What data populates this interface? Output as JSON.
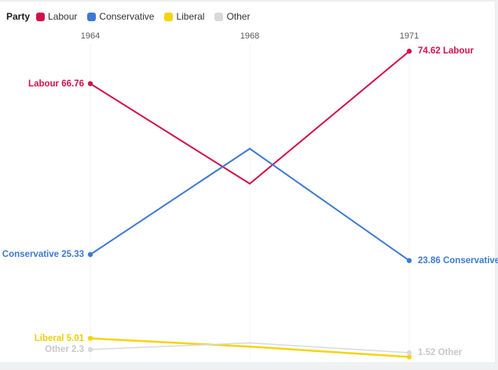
{
  "legend": {
    "title": "Party",
    "items": [
      {
        "label": "Labour",
        "color": "#d0114a"
      },
      {
        "label": "Conservative",
        "color": "#3e79d2"
      },
      {
        "label": "Liberal",
        "color": "#f5d40e"
      },
      {
        "label": "Other",
        "color": "#d9d9d9"
      }
    ]
  },
  "axis": {
    "years": [
      "1964",
      "1968",
      "1971"
    ]
  },
  "chart_data": {
    "type": "line",
    "title": "",
    "xlabel": "",
    "ylabel": "",
    "x": [
      1964,
      1968,
      1971
    ],
    "ylim": [
      0,
      80
    ],
    "y_axis_visible": false,
    "grid": "vertical-only",
    "legend_position": "top-left",
    "series": [
      {
        "name": "Labour",
        "color": "#d0114a",
        "label_color": "#d0114a",
        "values": [
          66.76,
          42.5,
          74.62
        ],
        "start_label": "Labour 66.76",
        "end_label": "74.62 Labour"
      },
      {
        "name": "Conservative",
        "color": "#3e79d2",
        "label_color": "#3e79d2",
        "values": [
          25.33,
          51,
          23.86
        ],
        "start_label": "Conservative 25.33",
        "end_label": "23.86 Conservative"
      },
      {
        "name": "Liberal",
        "color": "#f5d40e",
        "label_color": "#edcf05",
        "values": [
          5.01,
          3.0,
          0.5
        ],
        "start_label": "Liberal 5.01",
        "end_label": ""
      },
      {
        "name": "Other",
        "color": "#d9d9d9",
        "label_color": "#c8c8c8",
        "values": [
          2.3,
          3.9,
          1.52
        ],
        "start_label": "Other 2.3",
        "end_label": "1.52 Other"
      }
    ]
  }
}
